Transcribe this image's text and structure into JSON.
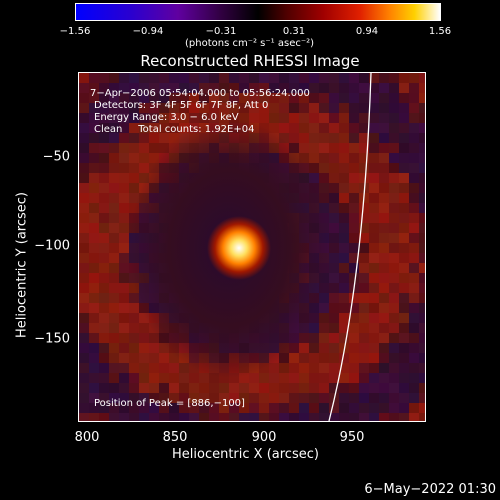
{
  "colorbar": {
    "ticks": [
      "−1.56",
      "−0.94",
      "−0.31",
      "0.31",
      "0.94",
      "1.56"
    ],
    "units": "(photons cm⁻² s⁻¹ asec⁻²)"
  },
  "title": "Reconstructed RHESSI Image",
  "info": {
    "line1": "7−Apr−2006 05:54:04.000 to 05:56:24.000",
    "line2": "Detectors: 3F 4F 5F 6F 7F 8F, Att 0",
    "line3": "Energy Range: 3.0 − 6.0 keV",
    "line4": "Clean     Total counts: 1.92E+04"
  },
  "peak_text": "Position of Peak = [886,−100]",
  "axes": {
    "xlabel": "Heliocentric X (arcsec)",
    "ylabel": "Heliocentric Y (arcsec)",
    "xticks": [
      "800",
      "850",
      "900",
      "950"
    ],
    "yticks": [
      "−50",
      "−100",
      "−150"
    ]
  },
  "image": {
    "x_range": [
      795,
      990
    ],
    "y_range": [
      -195,
      -15
    ],
    "peak": [
      886,
      -100
    ],
    "colors": {
      "peak_core": "#ffffff",
      "peak_mid": "#ffd000",
      "peak_outer": "#ff6000",
      "background_red": "#7a1a10",
      "background_purple": "#2a0a30"
    }
  },
  "footer": "6−May−2022 01:30"
}
